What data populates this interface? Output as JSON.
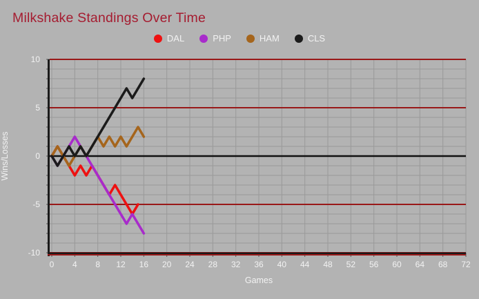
{
  "page": {
    "background_color": "#b3b3b3",
    "title_color": "#a51c30",
    "grid_color": "#999999",
    "grid_major_color": "#991818",
    "zero_line_color": "#111111",
    "axis_line_color": "#1a1a1a",
    "tick_text_color": "#f2f2f2"
  },
  "chart": {
    "title": "Milkshake Standings Over Time"
  },
  "chart_data": {
    "type": "line",
    "title": "Milkshake Standings Over Time",
    "xlabel": "Games",
    "ylabel": "Wins/Losses",
    "xlim": [
      0,
      72
    ],
    "ylim": [
      -10,
      10
    ],
    "x_ticks": [
      0,
      4,
      8,
      12,
      16,
      20,
      24,
      28,
      32,
      36,
      40,
      44,
      48,
      52,
      56,
      60,
      64,
      68,
      72
    ],
    "y_ticks": [
      10,
      5,
      0,
      -5,
      -10
    ],
    "grid": true,
    "legend_position": "top",
    "x_unit": "games played, one point per game starting at game 0",
    "series": [
      {
        "name": "DAL",
        "color": "#ee1111",
        "values": [
          0,
          1,
          0,
          -1,
          -2,
          -1,
          -2,
          -1,
          -2,
          -3,
          -4,
          -3,
          -4,
          -5,
          -6,
          -5
        ]
      },
      {
        "name": "PHP",
        "color": "#a82bcb",
        "values": [
          0,
          -1,
          0,
          1,
          2,
          1,
          0,
          -1,
          -2,
          -3,
          -4,
          -5,
          -6,
          -7,
          -6,
          -7,
          -8
        ]
      },
      {
        "name": "HAM",
        "color": "#a5651c",
        "values": [
          0,
          1,
          0,
          -1,
          0,
          1,
          0,
          1,
          2,
          1,
          2,
          1,
          2,
          1,
          2,
          3,
          2
        ]
      },
      {
        "name": "CLS",
        "color": "#1b1b1b",
        "values": [
          0,
          -1,
          0,
          1,
          0,
          1,
          0,
          1,
          2,
          3,
          4,
          5,
          6,
          7,
          6,
          7,
          8
        ]
      }
    ]
  }
}
